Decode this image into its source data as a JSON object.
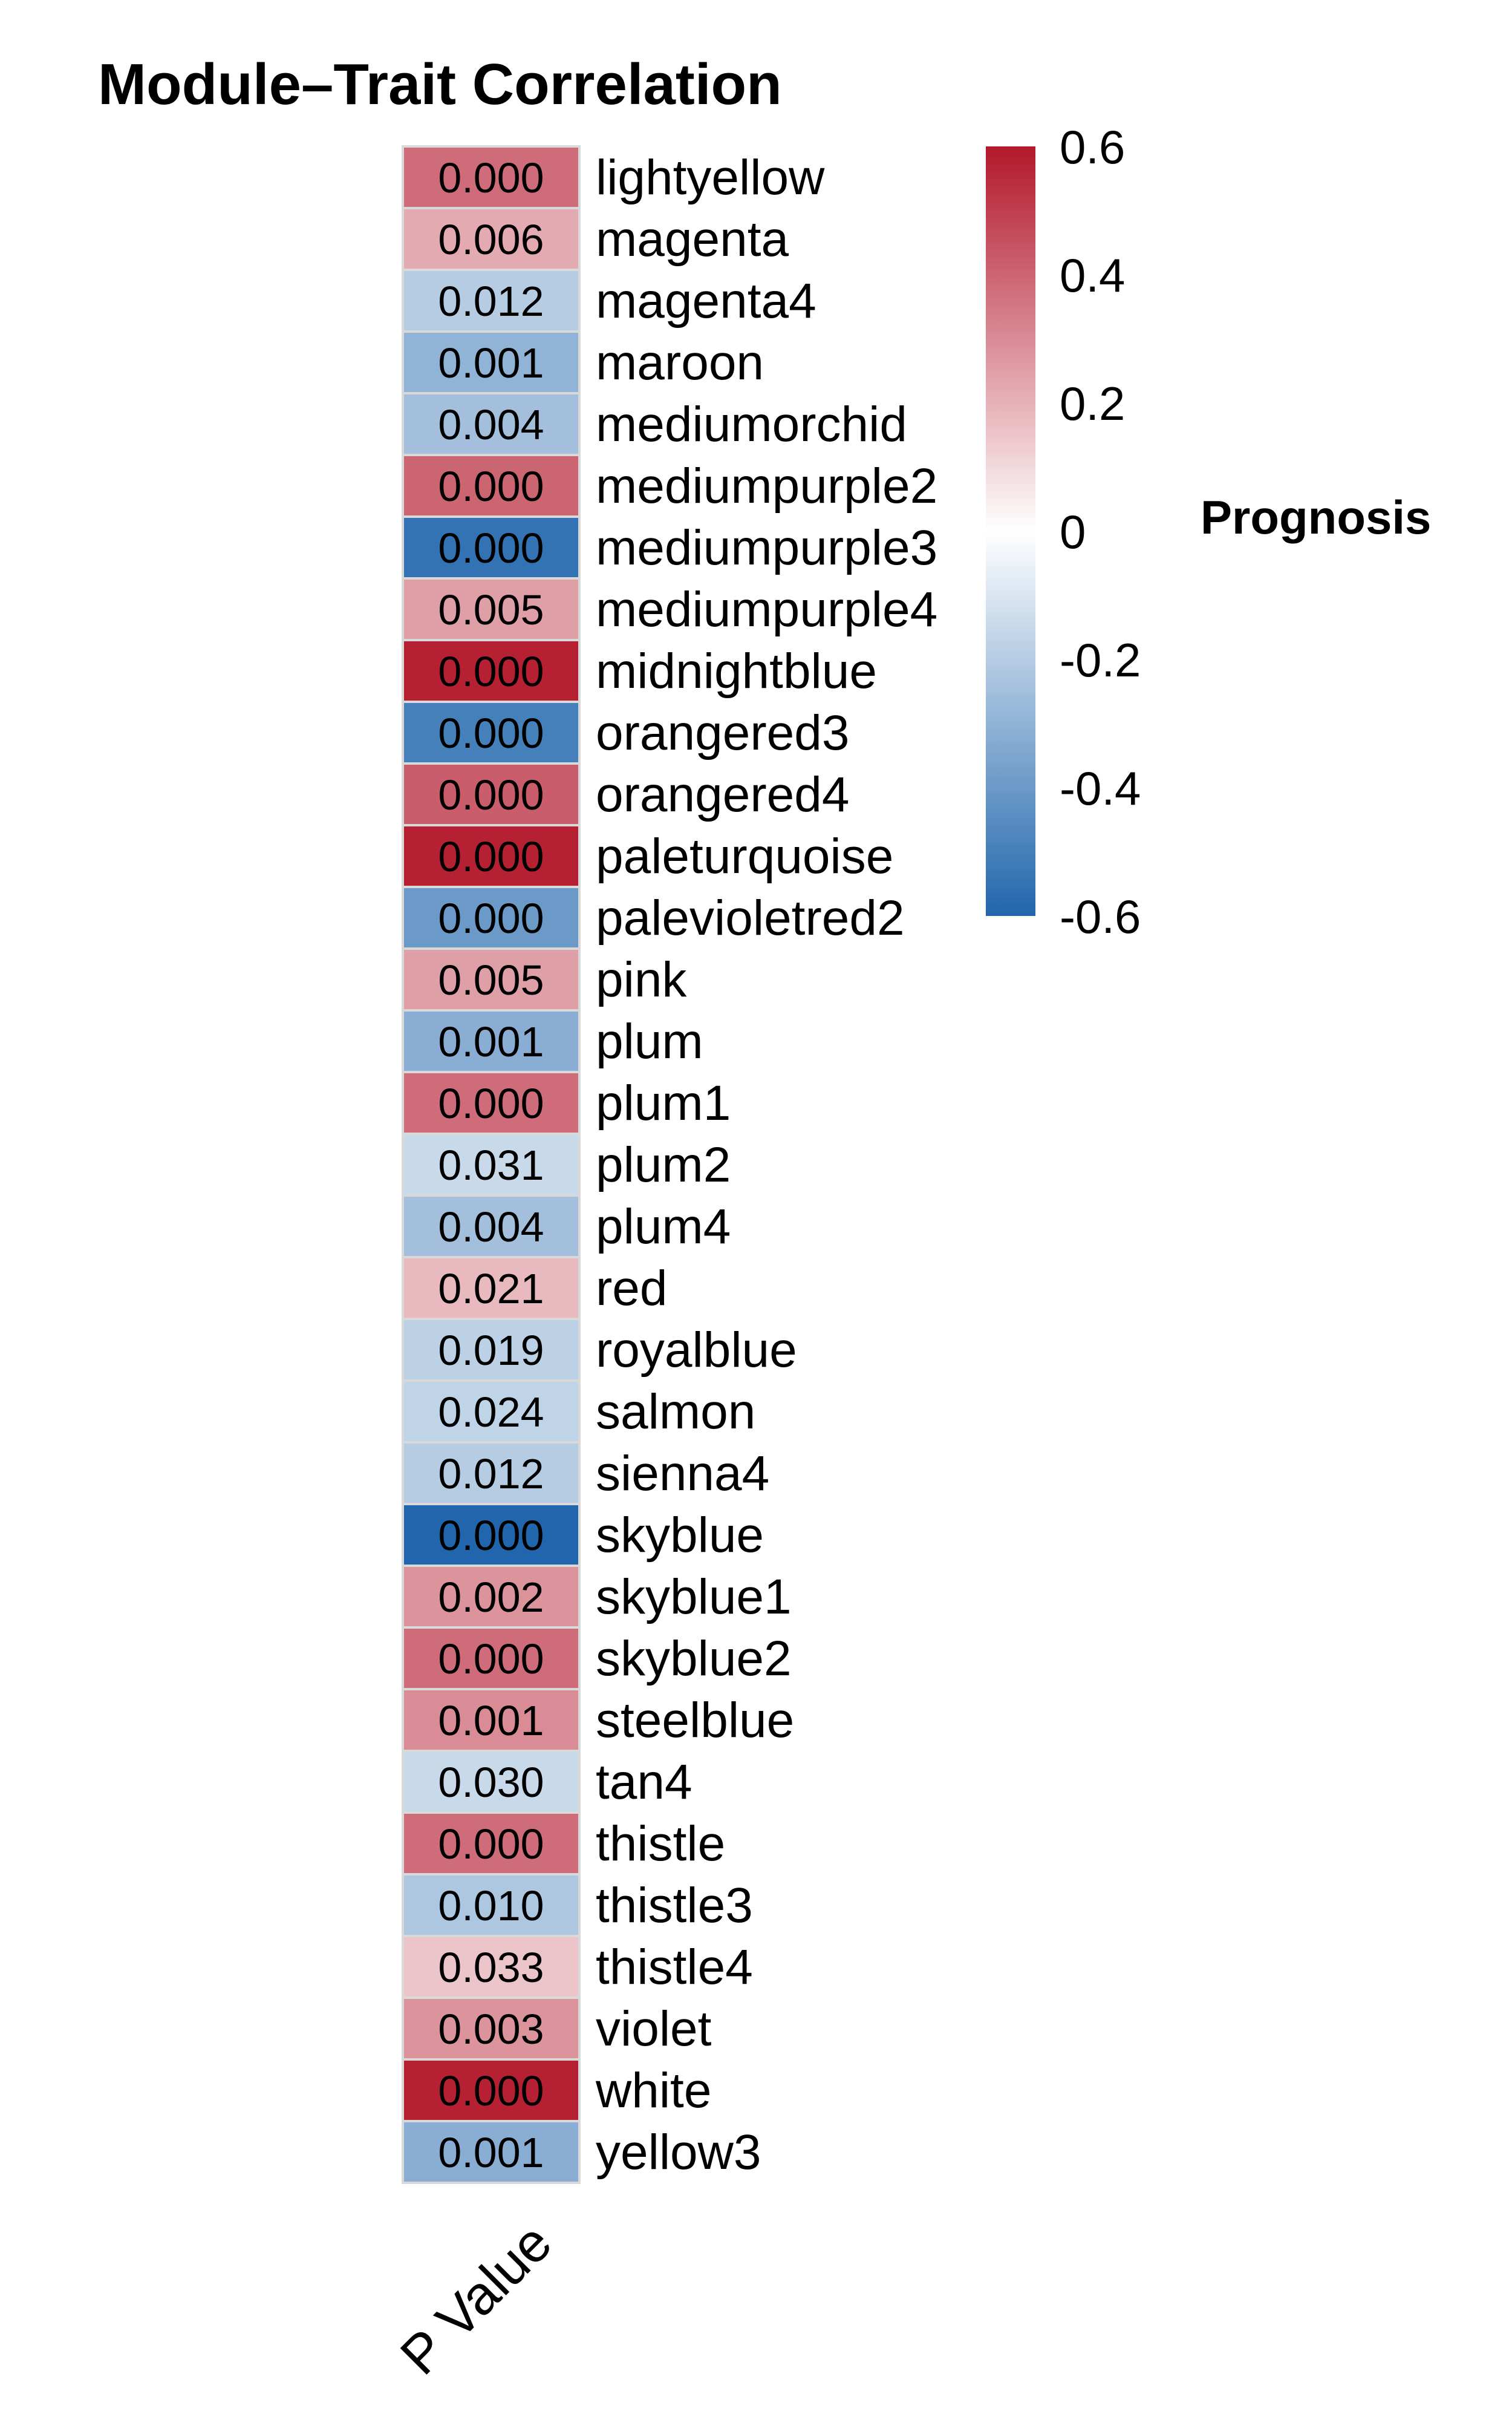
{
  "chart_data": {
    "type": "heatmap",
    "title": "Module–Trait Correlation",
    "column_label": "P Value",
    "legend": {
      "title": "Prognosis",
      "range": [
        -0.6,
        0.6
      ],
      "ticks": [
        0.6,
        0.4,
        0.2,
        0,
        -0.2,
        -0.4,
        -0.6
      ],
      "tick_labels": [
        "0.6",
        "0.4",
        "0.2",
        "0",
        "-0.2",
        "-0.4",
        "-0.6"
      ],
      "placement": "right"
    },
    "colors": {
      "negative": "#2166ac",
      "mid": "#ffffff",
      "positive": "#b2182b"
    },
    "rows": [
      {
        "module": "lightyellow",
        "p_value": "0.000",
        "correlation": 0.38
      },
      {
        "module": "magenta",
        "p_value": "0.006",
        "correlation": 0.22
      },
      {
        "module": "magenta4",
        "p_value": "0.012",
        "correlation": -0.2
      },
      {
        "module": "maroon",
        "p_value": "0.001",
        "correlation": -0.3
      },
      {
        "module": "mediumorchid",
        "p_value": "0.004",
        "correlation": -0.25
      },
      {
        "module": "mediumpurple2",
        "p_value": "0.000",
        "correlation": 0.4
      },
      {
        "module": "mediumpurple3",
        "p_value": "0.000",
        "correlation": -0.55
      },
      {
        "module": "mediumpurple4",
        "p_value": "0.005",
        "correlation": 0.25
      },
      {
        "module": "midnightblue",
        "p_value": "0.000",
        "correlation": 0.58
      },
      {
        "module": "orangered3",
        "p_value": "0.000",
        "correlation": -0.5
      },
      {
        "module": "orangered4",
        "p_value": "0.000",
        "correlation": 0.42
      },
      {
        "module": "paleturquoise",
        "p_value": "0.000",
        "correlation": 0.58
      },
      {
        "module": "palevioletred2",
        "p_value": "0.000",
        "correlation": -0.4
      },
      {
        "module": "pink",
        "p_value": "0.005",
        "correlation": 0.25
      },
      {
        "module": "plum",
        "p_value": "0.001",
        "correlation": -0.32
      },
      {
        "module": "plum1",
        "p_value": "0.000",
        "correlation": 0.38
      },
      {
        "module": "plum2",
        "p_value": "0.031",
        "correlation": -0.15
      },
      {
        "module": "plum4",
        "p_value": "0.004",
        "correlation": -0.25
      },
      {
        "module": "red",
        "p_value": "0.021",
        "correlation": 0.18
      },
      {
        "module": "royalblue",
        "p_value": "0.019",
        "correlation": -0.18
      },
      {
        "module": "salmon",
        "p_value": "0.024",
        "correlation": -0.17
      },
      {
        "module": "sienna4",
        "p_value": "0.012",
        "correlation": -0.2
      },
      {
        "module": "skyblue",
        "p_value": "0.000",
        "correlation": -0.6
      },
      {
        "module": "skyblue1",
        "p_value": "0.002",
        "correlation": 0.28
      },
      {
        "module": "skyblue2",
        "p_value": "0.000",
        "correlation": 0.38
      },
      {
        "module": "steelblue",
        "p_value": "0.001",
        "correlation": 0.3
      },
      {
        "module": "tan4",
        "p_value": "0.030",
        "correlation": -0.15
      },
      {
        "module": "thistle",
        "p_value": "0.000",
        "correlation": 0.38
      },
      {
        "module": "thistle3",
        "p_value": "0.010",
        "correlation": -0.22
      },
      {
        "module": "thistle4",
        "p_value": "0.033",
        "correlation": 0.15
      },
      {
        "module": "violet",
        "p_value": "0.003",
        "correlation": 0.28
      },
      {
        "module": "white",
        "p_value": "0.000",
        "correlation": 0.58
      },
      {
        "module": "yellow3",
        "p_value": "0.001",
        "correlation": -0.32
      }
    ]
  }
}
